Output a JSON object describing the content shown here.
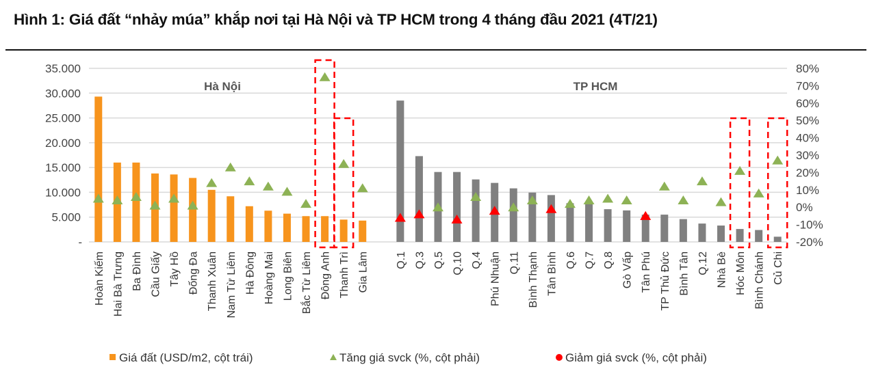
{
  "title": "Hình 1: Giá đất “nhảy múa” khắp nơi tại Hà Nội và TP HCM trong 4 tháng đầu 2021 (4T/21)",
  "chart_data": {
    "type": "bar+scatter",
    "left_axis": {
      "ylim": [
        0,
        35000
      ],
      "ticks": [
        "-",
        "5.000",
        "10.000",
        "15.000",
        "20.000",
        "25.000",
        "30.000",
        "35.000"
      ]
    },
    "right_axis": {
      "ylim": [
        -20,
        80
      ],
      "ticks": [
        "-20%",
        "-10%",
        "0%",
        "10%",
        "20%",
        "30%",
        "40%",
        "50%",
        "60%",
        "70%",
        "80%"
      ]
    },
    "grid": true,
    "groups": [
      {
        "label": "Hà Nội",
        "bar_color": "#F7941D",
        "categories": [
          "Hoàn Kiếm",
          "Hai Bà Trưng",
          "Ba Đình",
          "Cầu Giấy",
          "Tây Hồ",
          "Đống Đa",
          "Thanh Xuân",
          "Nam Từ Liêm",
          "Hà Đông",
          "Hoàng Mai",
          "Long Biên",
          "Bắc Từ Liêm",
          "Đông Anh",
          "Thanh Trì",
          "Gia Lâm"
        ],
        "price": [
          29300,
          16000,
          16000,
          13800,
          13600,
          12900,
          10500,
          9200,
          7200,
          6300,
          5700,
          5200,
          5200,
          4500,
          4300
        ],
        "change_pct": [
          5,
          4,
          6,
          1,
          5,
          1,
          14,
          23,
          15,
          12,
          9,
          2,
          75,
          25,
          11
        ],
        "highlighted": [
          "Đông Anh",
          "Thanh Trì"
        ]
      },
      {
        "label": "TP HCM",
        "bar_color": "#808080",
        "categories": [
          "Q.1",
          "Q.3",
          "Q.5",
          "Q.10",
          "Q.4",
          "Phú Nhuận",
          "Q.11",
          "Bình Thạnh",
          "Tân Bình",
          "Q.6",
          "Q.7",
          "Q.8",
          "Gò Vấp",
          "Tân Phú",
          "TP Thủ Đức",
          "Bình Tân",
          "Q.12",
          "Nhà Bè",
          "Hóc Môn",
          "Bình Chánh",
          "Củ Chi"
        ],
        "price": [
          28500,
          17300,
          14100,
          14100,
          12600,
          11900,
          10800,
          9950,
          9450,
          7800,
          7600,
          6600,
          6350,
          5500,
          5500,
          4600,
          3700,
          3300,
          2600,
          2400,
          1050
        ],
        "change_pct": [
          -6,
          -4,
          0,
          -7,
          6,
          -2,
          0,
          4,
          -1,
          2,
          4,
          5,
          4,
          -5,
          12,
          4,
          15,
          3,
          21,
          8,
          27
        ],
        "highlighted": [
          "Hóc Môn",
          "Củ Chi"
        ]
      }
    ],
    "legend": [
      {
        "label": "Giá đất (USD/m2, cột trái)",
        "marker": "square",
        "color": "#F7941D"
      },
      {
        "label": "Tăng giá svck (%, cột phải)",
        "marker": "triangle",
        "color": "#8DB255"
      },
      {
        "label": "Giảm giá svck (%, cột phải)",
        "marker": "circle",
        "color": "#FF0000"
      }
    ],
    "legend_position": "bottom",
    "highlight_color": "#FF0000"
  }
}
